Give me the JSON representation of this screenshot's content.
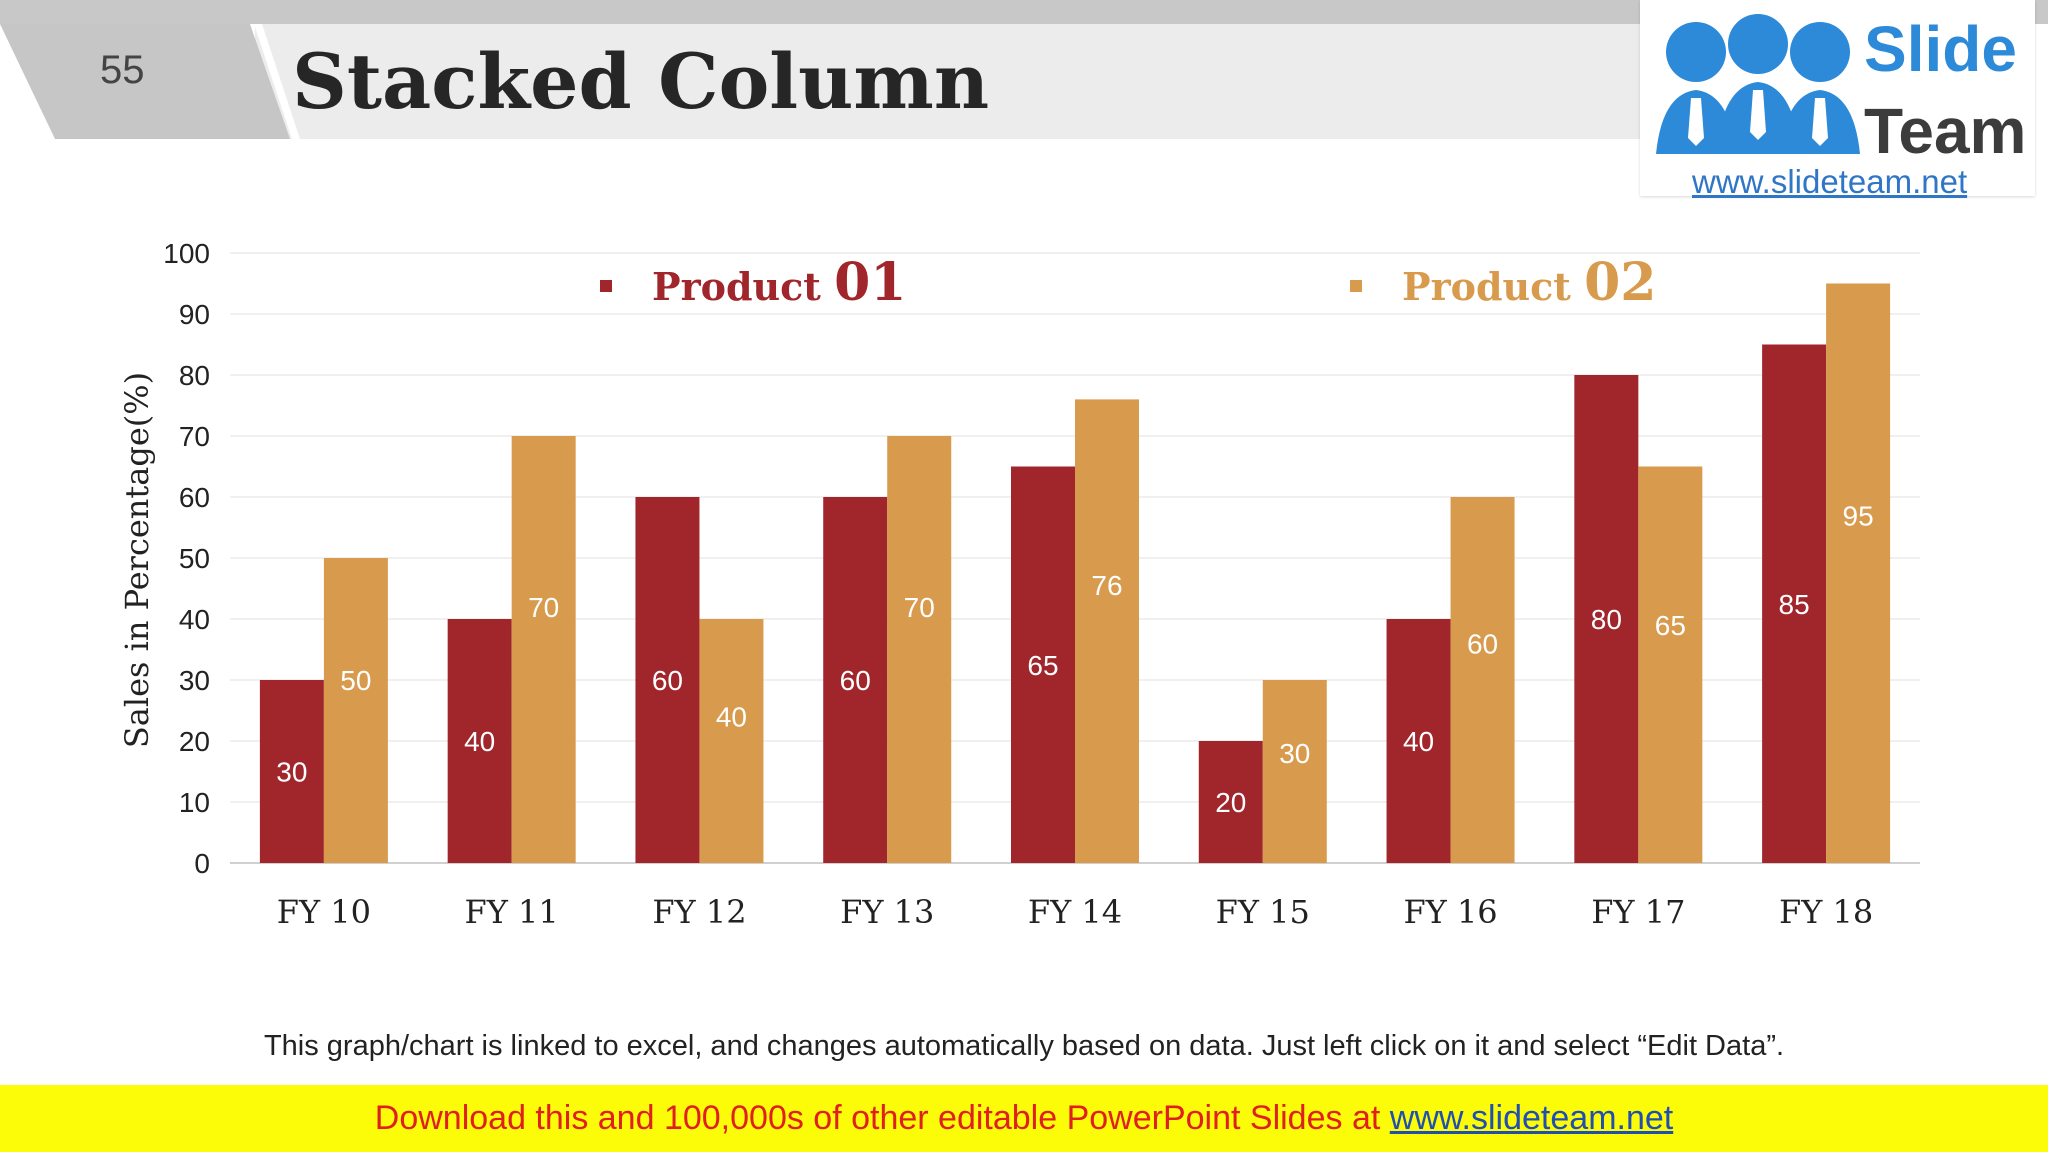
{
  "slide": {
    "number": "55",
    "title": "Stacked Column",
    "note": "This graph/chart is linked to excel, and changes automatically based on data. Just left click on it and select “Edit Data”."
  },
  "logo": {
    "word1": "Slide",
    "word2": "Team",
    "url": "www.slideteam.net"
  },
  "footer": {
    "text": "Download this and 100,000s of other editable PowerPoint Slides at ",
    "link": "www.slideteam.net"
  },
  "colors": {
    "product1": "#a0262c",
    "product2": "#d89a4c",
    "logo_blue": "#2d8ad8",
    "footer_bg": "#fcfc08",
    "footer_text": "#e02020"
  },
  "chart_data": {
    "type": "bar",
    "title": "",
    "ylabel": "Sales in Percentage(%)",
    "xlabel": "",
    "ylim": [
      0,
      100
    ],
    "yticks": [
      0,
      10,
      20,
      30,
      40,
      50,
      60,
      70,
      80,
      90,
      100
    ],
    "grid": true,
    "legend_position": "top",
    "categories": [
      "FY 10",
      "FY 11",
      "FY 12",
      "FY 13",
      "FY 14",
      "FY 15",
      "FY 16",
      "FY 17",
      "FY 18"
    ],
    "series": [
      {
        "name": "Product 01",
        "legend_word": "Product",
        "legend_num": "01",
        "color": "#a0262c",
        "values": [
          30,
          40,
          60,
          60,
          65,
          20,
          40,
          80,
          85
        ]
      },
      {
        "name": "Product 02",
        "legend_word": "Product",
        "legend_num": "02",
        "color": "#d89a4c",
        "values": [
          50,
          70,
          40,
          70,
          76,
          30,
          60,
          65,
          95
        ]
      }
    ]
  }
}
